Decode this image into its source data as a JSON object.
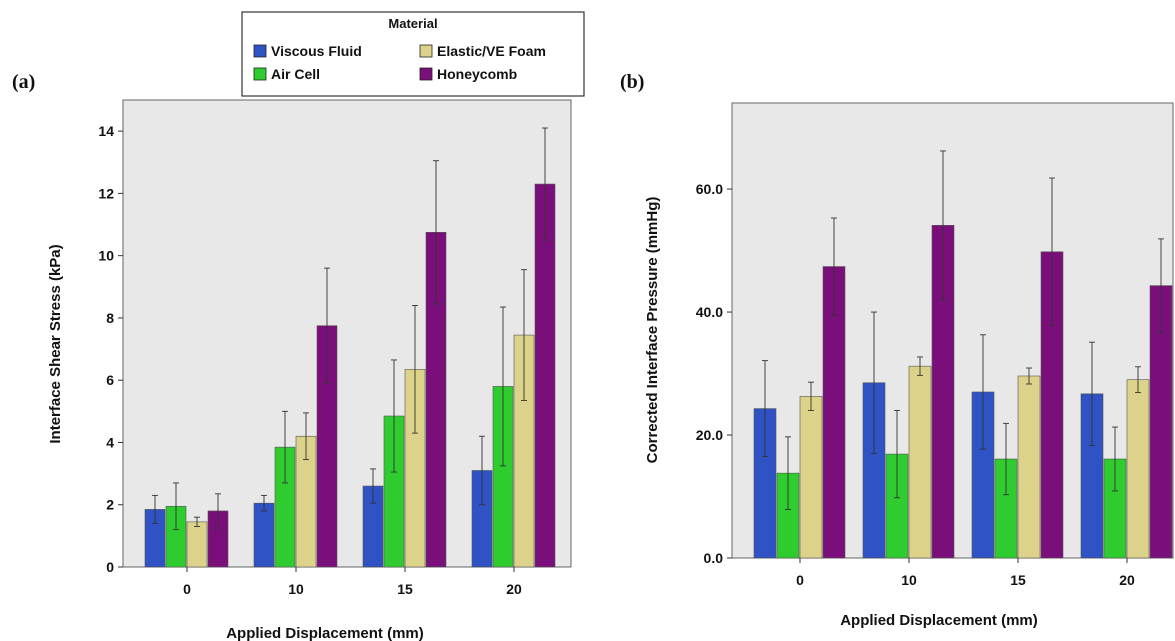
{
  "legend": {
    "title": "Material",
    "items": [
      {
        "label": "Viscous Fluid",
        "color": "#2f52c4"
      },
      {
        "label": "Air Cell",
        "color": "#2ecc2e"
      },
      {
        "label": "Elastic/VE Foam",
        "color": "#dcd28a"
      },
      {
        "label": "Honeycomb",
        "color": "#7a0e7a"
      }
    ]
  },
  "chart_data": [
    {
      "type": "bar",
      "panel_label": "(a)",
      "title": "",
      "xlabel": "Applied Displacement (mm)",
      "ylabel": "Interface Shear Stress (kPa)",
      "categories": [
        "0",
        "10",
        "15",
        "20"
      ],
      "ylim": [
        0,
        15
      ],
      "yticks": [
        0,
        2,
        4,
        6,
        8,
        10,
        12,
        14
      ],
      "ytick_labels": [
        "0",
        "2",
        "4",
        "6",
        "8",
        "10",
        "12",
        "14"
      ],
      "series": [
        {
          "name": "Viscous Fluid",
          "color": "#2f52c4",
          "values": [
            1.85,
            2.05,
            2.6,
            3.1
          ],
          "errors": [
            0.45,
            0.25,
            0.55,
            1.1
          ]
        },
        {
          "name": "Air Cell",
          "color": "#2ecc2e",
          "values": [
            1.95,
            3.85,
            4.85,
            5.8
          ],
          "errors": [
            0.75,
            1.15,
            1.8,
            2.55
          ]
        },
        {
          "name": "Elastic/VE Foam",
          "color": "#dcd28a",
          "values": [
            1.45,
            4.2,
            6.35,
            7.45
          ],
          "errors": [
            0.15,
            0.75,
            2.05,
            2.1
          ]
        },
        {
          "name": "Honeycomb",
          "color": "#7a0e7a",
          "values": [
            1.8,
            7.75,
            10.75,
            12.3
          ],
          "errors": [
            0.55,
            1.85,
            2.3,
            1.8
          ]
        }
      ]
    },
    {
      "type": "bar",
      "panel_label": "(b)",
      "title": "",
      "xlabel": "Applied Displacement (mm)",
      "ylabel": "Corrected Interface Pressure (mmHg)",
      "categories": [
        "0",
        "10",
        "15",
        "20"
      ],
      "ylim": [
        0,
        74
      ],
      "yticks": [
        0,
        20,
        40,
        60
      ],
      "ytick_labels": [
        "0.0",
        "20.0",
        "40.0",
        "60.0"
      ],
      "series": [
        {
          "name": "Viscous Fluid",
          "color": "#2f52c4",
          "values": [
            24.3,
            28.5,
            27.0,
            26.7
          ],
          "errors": [
            7.8,
            11.5,
            9.3,
            8.4
          ]
        },
        {
          "name": "Air Cell",
          "color": "#2ecc2e",
          "values": [
            13.8,
            16.9,
            16.1,
            16.1
          ],
          "errors": [
            5.9,
            7.1,
            5.8,
            5.2
          ]
        },
        {
          "name": "Elastic/VE Foam",
          "color": "#dcd28a",
          "values": [
            26.3,
            31.2,
            29.6,
            29.0
          ],
          "errors": [
            2.3,
            1.5,
            1.3,
            2.1
          ]
        },
        {
          "name": "Honeycomb",
          "color": "#7a0e7a",
          "values": [
            47.4,
            54.1,
            49.8,
            44.3
          ],
          "errors": [
            7.9,
            12.1,
            12.0,
            7.6
          ]
        }
      ]
    }
  ]
}
